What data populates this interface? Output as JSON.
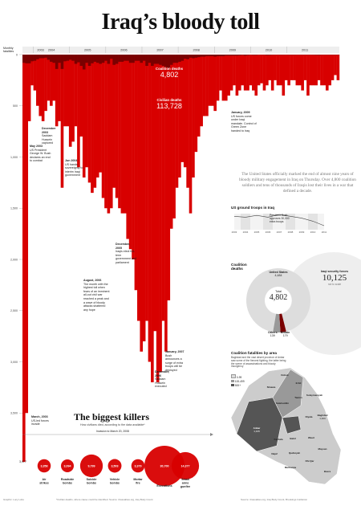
{
  "title": "Iraq’s bloody toll",
  "colors": {
    "blood": "#d80000",
    "dark_blood": "#7a0000",
    "grey": "#bbbbbb",
    "light_grey": "#dddddd"
  },
  "chart_data": [
    {
      "type": "bar",
      "ylabel": "Monthly fatalities",
      "ylim": [
        0,
        4000
      ],
      "y_ticks": [
        "0",
        "500",
        "1,000",
        "1,500",
        "2,000",
        "2,500",
        "3,000",
        "3,500"
      ],
      "years": [
        "2003",
        "2004",
        "2005",
        "2006",
        "2007",
        "2008",
        "2009",
        "2010",
        "2011"
      ],
      "series": [
        {
          "name": "Coalition deaths",
          "values": [
            80,
            85,
            85,
            65,
            60,
            45,
            35,
            35,
            30,
            50,
            70,
            80,
            140,
            80,
            140,
            65,
            60,
            50,
            60,
            90,
            75,
            110,
            145,
            80,
            110,
            85,
            70,
            80,
            90,
            80,
            60,
            90,
            40,
            100,
            90,
            70,
            70,
            60,
            60,
            80,
            80,
            60,
            60,
            80,
            60,
            110,
            80,
            110,
            90,
            90,
            100,
            110,
            125,
            130,
            100,
            80,
            80,
            70,
            60,
            40,
            45,
            30,
            35,
            30,
            25,
            20,
            20,
            15,
            15,
            15,
            20,
            15,
            15,
            15,
            10,
            10,
            10,
            10,
            10,
            8,
            5,
            10,
            6,
            3,
            5,
            5,
            2,
            2,
            3,
            6,
            5,
            3,
            2,
            2,
            3,
            3,
            2,
            3,
            3,
            3,
            2,
            2,
            2,
            2,
            2,
            2,
            3,
            4,
            5,
            2,
            2,
            2,
            1,
            1,
            1,
            1
          ]
        },
        {
          "name": "Civilian deaths",
          "values": [
            3977,
            3500,
            650,
            300,
            350,
            500,
            600,
            650,
            550,
            450,
            500,
            450,
            700,
            650,
            1300,
            700,
            700,
            900,
            850,
            700,
            1100,
            800,
            1200,
            1100,
            1250,
            1350,
            1300,
            1200,
            1150,
            1400,
            1500,
            1550,
            1500,
            1300,
            1400,
            1500,
            1550,
            1550,
            1800,
            1900,
            2000,
            2300,
            2600,
            2900,
            2800,
            2600,
            3000,
            3200,
            2700,
            3200,
            3100,
            2600,
            2900,
            2400,
            1700,
            1600,
            1300,
            1200,
            1050,
            1100,
            1300,
            1550,
            1200,
            950,
            800,
            700,
            600,
            600,
            500,
            500,
            550,
            450,
            350,
            450,
            450,
            400,
            350,
            300,
            400,
            350,
            300,
            350,
            350,
            300,
            350,
            400,
            300,
            280,
            350,
            300,
            250,
            350,
            250,
            300,
            300,
            400,
            250,
            300,
            250,
            250,
            300,
            300,
            350,
            250,
            400,
            300,
            300,
            300,
            250,
            300,
            300,
            350,
            300,
            250,
            200,
            250
          ]
        }
      ],
      "annotations": [
        {
          "date": "May 2003",
          "text": "US President George W. Bush declares an end to combat"
        },
        {
          "date": "December 2003",
          "text": "Saddam Hussein captured"
        },
        {
          "date": "Jun 2004",
          "text": "US hands sovereignty to interim Iraqi government"
        },
        {
          "date": "December, 2005",
          "text": "Iraqis elect full-term government and parliament"
        },
        {
          "date": "August, 2006",
          "text": "The month with the highest toll when fears of an imminent all-out civil war reached a peak and a wave of bloody attacks shattered any hope"
        },
        {
          "date": "December, 2006",
          "text": "Saddam Hussein executed"
        },
        {
          "date": "January, 2007",
          "text": "Bush announces a surge of extra troops will be deployed"
        },
        {
          "date": "January, 2009",
          "text": "US forces come under Iraqi mandate. Control of Green Zone handed to Iraq"
        },
        {
          "date": "March, 2003",
          "text": "US-led forces invade"
        }
      ],
      "coalition_label": "Coalition deaths",
      "coalition_total": "4,802",
      "civilian_label": "Civilian deaths",
      "civilian_total": "113,728",
      "first_bar_label": "3,977"
    },
    {
      "type": "line",
      "title": "US ground troops in Iraq",
      "x": [
        "2003",
        "2004",
        "2005",
        "2006",
        "2007",
        "2008",
        "2009",
        "2010",
        "2011"
      ],
      "y": [
        150000,
        140000,
        160000,
        140000,
        170000,
        150000,
        130000,
        95000,
        45000
      ],
      "annotation": "President Bush approves 30,000 extra troops"
    },
    {
      "type": "pie",
      "title": "Coalition deaths",
      "total_label": "Total",
      "total": "4,802",
      "slices": [
        {
          "name": "United States",
          "value": 4484
        },
        {
          "name": "Others",
          "value": 139
        },
        {
          "name": "Britain",
          "value": 179
        }
      ],
      "slice_labels": [
        "4,484",
        "139",
        "179"
      ],
      "iraqi_label": "Iraqi security forces",
      "iraqi_value": "10,125",
      "iraqi_note": "not to scale"
    },
    {
      "type": "bar",
      "title": "The biggest killers",
      "subtitle": "How civilians died, according to the data available*",
      "invasion_label": "Invasion to March 20, 2008",
      "categories": [
        "Air strikes",
        "Roadside bombs",
        "Suicide bombs",
        "Vehicle bombs",
        "Mortar fire",
        "Executions",
        "Small arms gunfire"
      ],
      "values": [
        3358,
        3094,
        9799,
        3503,
        3379,
        30700,
        14377
      ],
      "value_labels": [
        "3,358",
        "3,094",
        "9,799",
        "3,503",
        "3,379",
        "30,700",
        "14,377"
      ]
    }
  ],
  "intro_text": "The United States officially marked the end of almost nine years of bloody military engagement in Iraq on Thursday. Over 4,800 coalition soldiers and tens of thousands of Iraqis lost their lives in a war that defined a decade.",
  "map": {
    "title": "Coalition fatalities by area",
    "subtitle": "Baghdad and the vast desert province of Anbar saw some of the fiercest fighting, the latter being the scene of assassinations and bloody insurgency",
    "legend": [
      "0-99",
      "100-499",
      "500+"
    ],
    "regions": [
      {
        "name": "Dohuk"
      },
      {
        "name": "Ninawa"
      },
      {
        "name": "Erbil"
      },
      {
        "name": "Sulaymaniyah"
      },
      {
        "name": "Tamim"
      },
      {
        "name": "Salahuddin"
      },
      {
        "name": "Diyala"
      },
      {
        "name": "Anbar",
        "value": "1,315"
      },
      {
        "name": "Baghdad",
        "value": "1,400"
      },
      {
        "name": "Babil"
      },
      {
        "name": "Wasit"
      },
      {
        "name": "Karbala"
      },
      {
        "name": "Najaf"
      },
      {
        "name": "Qadisiyah"
      },
      {
        "name": "Maysan"
      },
      {
        "name": "Dhi Qar"
      },
      {
        "name": "Muthanna"
      },
      {
        "name": "Basra"
      }
    ]
  },
  "footer": {
    "left": "Graphic: Lucy Lobo",
    "mid": "*Civilian deaths, where cause could be identified. Source: iCasualties.org, Iraq Body Count",
    "right": "Source: iCasualties.org, Iraq Body Count, Brookings Institution"
  }
}
